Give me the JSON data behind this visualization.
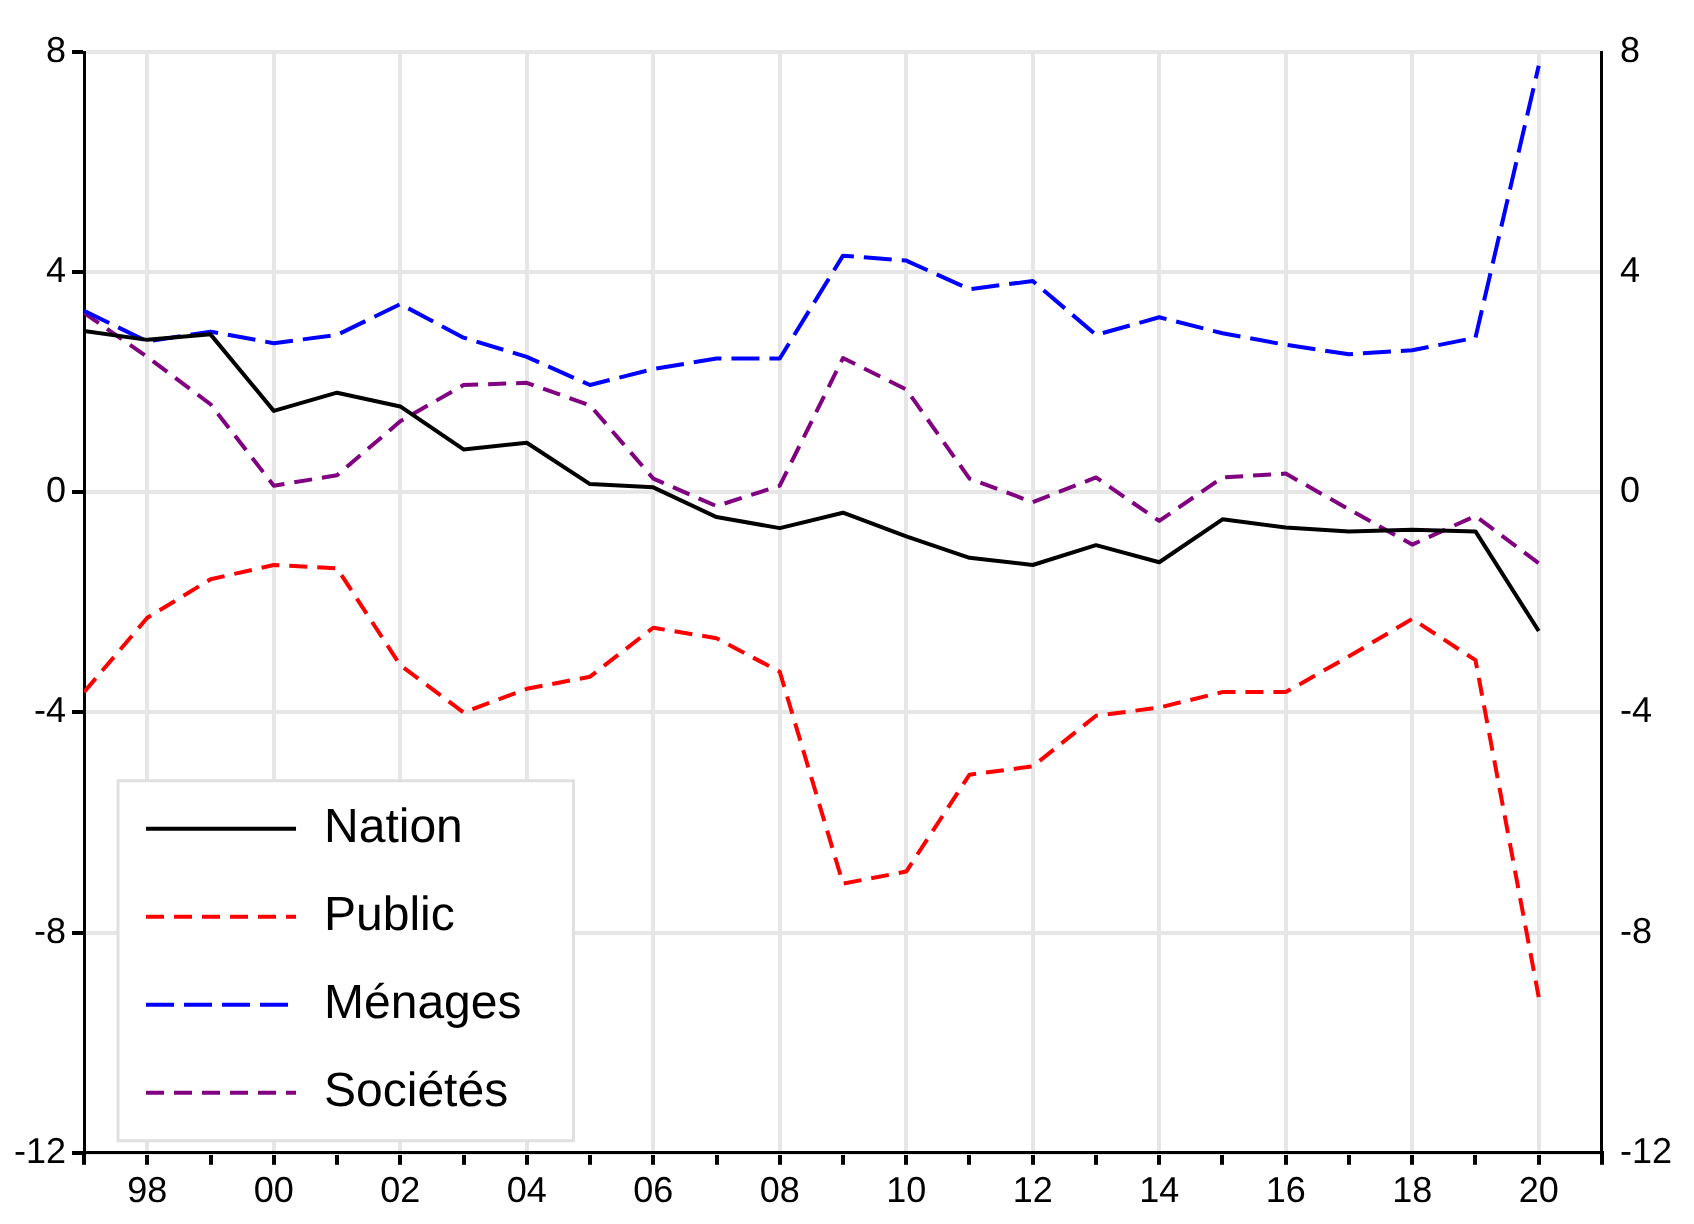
{
  "chart_data": {
    "type": "line",
    "x": [
      1997,
      1998,
      1999,
      2000,
      2001,
      2002,
      2003,
      2004,
      2005,
      2006,
      2007,
      2008,
      2009,
      2010,
      2011,
      2012,
      2013,
      2014,
      2015,
      2016,
      2017,
      2018,
      2019,
      2020
    ],
    "series": [
      {
        "name": "Nation",
        "color": "#000000",
        "line_style": "solid",
        "values": [
          2.93,
          2.77,
          2.87,
          1.48,
          1.81,
          1.56,
          0.78,
          0.9,
          0.15,
          0.09,
          -0.45,
          -0.65,
          -0.37,
          -0.8,
          -1.19,
          -1.32,
          -0.96,
          -1.27,
          -0.49,
          -0.64,
          -0.71,
          -0.68,
          -0.71,
          -2.52
        ]
      },
      {
        "name": "Public",
        "color": "#ff0000",
        "line_style": "dashed",
        "values": [
          -3.63,
          -2.28,
          -1.58,
          -1.32,
          -1.38,
          -3.14,
          -4.0,
          -3.57,
          -3.35,
          -2.46,
          -2.65,
          -3.26,
          -7.11,
          -6.89,
          -5.13,
          -4.98,
          -4.06,
          -3.91,
          -3.63,
          -3.63,
          -2.98,
          -2.3,
          -3.05,
          -9.17
        ]
      },
      {
        "name": "Ménages",
        "color": "#0000ff",
        "line_style": "dashed",
        "values": [
          3.3,
          2.74,
          2.92,
          2.71,
          2.86,
          3.42,
          2.81,
          2.46,
          1.95,
          2.24,
          2.43,
          2.43,
          4.3,
          4.21,
          3.69,
          3.84,
          2.86,
          3.18,
          2.89,
          2.68,
          2.51,
          2.58,
          2.81,
          7.75
        ]
      },
      {
        "name": "Sociétés",
        "color": "#800080",
        "line_style": "dashed",
        "values": [
          3.26,
          2.46,
          1.6,
          0.12,
          0.31,
          1.29,
          1.95,
          1.99,
          1.58,
          0.25,
          -0.25,
          0.12,
          2.44,
          1.87,
          0.25,
          -0.18,
          0.27,
          -0.52,
          0.27,
          0.34,
          -0.31,
          -0.95,
          -0.43,
          -1.29
        ]
      }
    ],
    "xlim": [
      1997,
      2021
    ],
    "xticks": [
      {
        "value": 1997,
        "label": null
      },
      {
        "value": 1998,
        "label": "98"
      },
      {
        "value": 1999,
        "label": null
      },
      {
        "value": 2000,
        "label": "00"
      },
      {
        "value": 2001,
        "label": null
      },
      {
        "value": 2002,
        "label": "02"
      },
      {
        "value": 2003,
        "label": null
      },
      {
        "value": 2004,
        "label": "04"
      },
      {
        "value": 2005,
        "label": null
      },
      {
        "value": 2006,
        "label": "06"
      },
      {
        "value": 2007,
        "label": null
      },
      {
        "value": 2008,
        "label": "08"
      },
      {
        "value": 2009,
        "label": null
      },
      {
        "value": 2010,
        "label": "10"
      },
      {
        "value": 2011,
        "label": null
      },
      {
        "value": 2012,
        "label": "12"
      },
      {
        "value": 2013,
        "label": null
      },
      {
        "value": 2014,
        "label": "14"
      },
      {
        "value": 2015,
        "label": null
      },
      {
        "value": 2016,
        "label": "16"
      },
      {
        "value": 2017,
        "label": null
      },
      {
        "value": 2018,
        "label": "18"
      },
      {
        "value": 2019,
        "label": null
      },
      {
        "value": 2020,
        "label": "20"
      },
      {
        "value": 2021,
        "label": null
      }
    ],
    "ylim": [
      -12,
      8
    ],
    "yticks": [
      -12,
      -8,
      -4,
      0,
      4,
      8
    ],
    "y2lim": [
      -12,
      8
    ],
    "y2ticks": [
      -12,
      -8,
      -4,
      0,
      4,
      8
    ],
    "grid": true,
    "legend": "bottom left",
    "marker": "none"
  }
}
